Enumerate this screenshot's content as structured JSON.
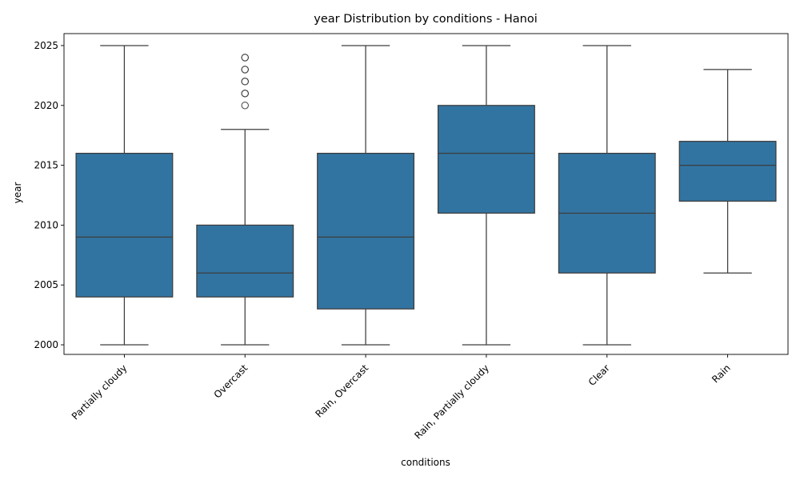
{
  "chart_data": {
    "type": "box",
    "title": "year Distribution by conditions - Hanoi",
    "xlabel": "conditions",
    "ylabel": "year",
    "ylim": [
      1999.2,
      2026.0
    ],
    "yticks": [
      2000,
      2005,
      2010,
      2015,
      2020,
      2025
    ],
    "grid": false,
    "color": "#3274a1",
    "categories": [
      "Partially cloudy",
      "Overcast",
      "Rain, Overcast",
      "Rain, Partially cloudy",
      "Clear",
      "Rain"
    ],
    "boxes": [
      {
        "category": "Partially cloudy",
        "whisker_low": 2000,
        "q1": 2004,
        "median": 2009,
        "q3": 2016,
        "whisker_high": 2025,
        "outliers": []
      },
      {
        "category": "Overcast",
        "whisker_low": 2000,
        "q1": 2004,
        "median": 2006,
        "q3": 2010,
        "whisker_high": 2018,
        "outliers": [
          2020,
          2021,
          2021,
          2022,
          2022,
          2023,
          2023,
          2024,
          2024
        ]
      },
      {
        "category": "Rain, Overcast",
        "whisker_low": 2000,
        "q1": 2003,
        "median": 2009,
        "q3": 2016,
        "whisker_high": 2025,
        "outliers": []
      },
      {
        "category": "Rain, Partially cloudy",
        "whisker_low": 2000,
        "q1": 2011,
        "median": 2016,
        "q3": 2020,
        "whisker_high": 2025,
        "outliers": []
      },
      {
        "category": "Clear",
        "whisker_low": 2000,
        "q1": 2006,
        "median": 2011,
        "q3": 2016,
        "whisker_high": 2025,
        "outliers": []
      },
      {
        "category": "Rain",
        "whisker_low": 2006,
        "q1": 2012,
        "median": 2015,
        "q3": 2017,
        "whisker_high": 2023,
        "outliers": []
      }
    ]
  }
}
